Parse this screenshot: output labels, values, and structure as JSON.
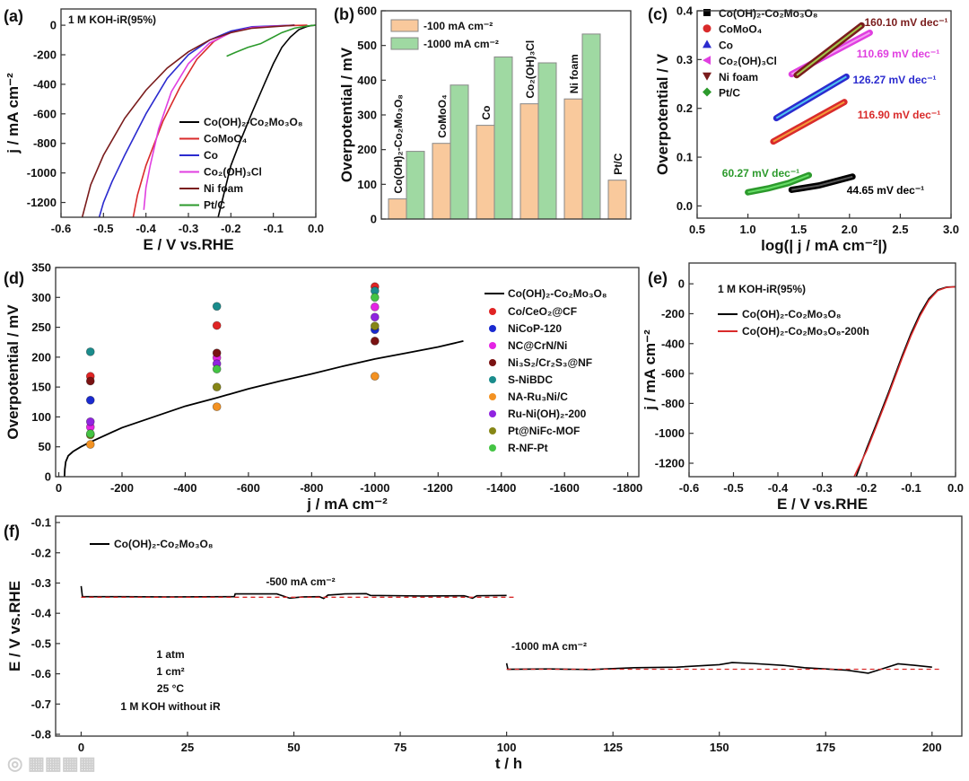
{
  "figure": {
    "watermark": "大数跨境"
  },
  "chart_data": [
    {
      "id": "a",
      "panel_label": "(a)",
      "type": "line",
      "xlabel": "E / V vs.RHE",
      "ylabel": "j / mA cm⁻²",
      "xlim": [
        -0.6,
        0.0
      ],
      "ylim": [
        -1300,
        110
      ],
      "xticks": [
        -0.6,
        -0.5,
        -0.4,
        -0.3,
        -0.2,
        -0.1,
        0.0
      ],
      "xtick_labels": [
        "-0.6",
        "-0.5",
        "-0.4",
        "-0.3",
        "-0.2",
        "-0.1",
        "0.0"
      ],
      "yticks": [
        0,
        -200,
        -400,
        -600,
        -800,
        -1000,
        -1200
      ],
      "ytick_labels": [
        "0",
        "-200",
        "-400",
        "-600",
        "-800",
        "-1000",
        "-1200"
      ],
      "annotations": [
        "1 M KOH-iR(95%)"
      ],
      "legend_position": "bottom-right",
      "series": [
        {
          "name": "Co(OH)₂-Co₂Mo₃O₈",
          "color": "#000000",
          "x": [
            0,
            -0.01,
            -0.02,
            -0.04,
            -0.06,
            -0.08,
            -0.1,
            -0.12,
            -0.15,
            -0.18,
            -0.2,
            -0.23
          ],
          "y": [
            0,
            -2,
            -8,
            -30,
            -80,
            -150,
            -260,
            -390,
            -590,
            -800,
            -950,
            -1300
          ]
        },
        {
          "name": "CoMoO₄",
          "color": "#d92b2b",
          "x": [
            -0.02,
            -0.1,
            -0.15,
            -0.2,
            -0.24,
            -0.28,
            -0.32,
            -0.36,
            -0.4,
            -0.42,
            -0.43
          ],
          "y": [
            0,
            -5,
            -15,
            -45,
            -110,
            -230,
            -420,
            -650,
            -950,
            -1150,
            -1300
          ]
        },
        {
          "name": "Co",
          "color": "#2b2bcf",
          "x": [
            -0.05,
            -0.15,
            -0.2,
            -0.25,
            -0.3,
            -0.35,
            -0.4,
            -0.45,
            -0.48,
            -0.5,
            -0.51
          ],
          "y": [
            0,
            -10,
            -40,
            -100,
            -200,
            -360,
            -600,
            -880,
            -1060,
            -1200,
            -1300
          ]
        },
        {
          "name": "Co₂(OH)₃Cl",
          "color": "#e03fe0",
          "x": [
            -0.05,
            -0.15,
            -0.2,
            -0.25,
            -0.3,
            -0.34,
            -0.37,
            -0.39,
            -0.4,
            -0.405
          ],
          "y": [
            0,
            -15,
            -50,
            -120,
            -260,
            -450,
            -700,
            -950,
            -1100,
            -1250
          ]
        },
        {
          "name": "Ni foam",
          "color": "#7a1c1c",
          "x": [
            -0.05,
            -0.15,
            -0.2,
            -0.25,
            -0.3,
            -0.35,
            -0.4,
            -0.45,
            -0.5,
            -0.53,
            -0.55
          ],
          "y": [
            0,
            -20,
            -50,
            -100,
            -180,
            -290,
            -440,
            -630,
            -880,
            -1080,
            -1300
          ]
        },
        {
          "name": "Pt/C",
          "color": "#2c9a2c",
          "x": [
            0,
            -0.02,
            -0.05,
            -0.08,
            -0.11,
            -0.13,
            -0.16,
            -0.19,
            -0.21
          ],
          "y": [
            0,
            -5,
            -20,
            -50,
            -95,
            -125,
            -150,
            -185,
            -210
          ]
        }
      ]
    },
    {
      "id": "b",
      "panel_label": "(b)",
      "type": "bar",
      "xlabel": "",
      "ylabel": "Overpotential / mV",
      "ylim": [
        0,
        600
      ],
      "yticks": [
        0,
        100,
        200,
        300,
        400,
        500,
        600
      ],
      "ytick_labels": [
        "0",
        "100",
        "200",
        "300",
        "400",
        "500",
        "600"
      ],
      "categories": [
        "Co(OH)₂-Co₂Mo₃O₈",
        "CoMoO₄",
        "Co",
        "Co₂(OH)₃Cl",
        "Ni foam",
        "Pt/C"
      ],
      "legend_position": "top-left",
      "series": [
        {
          "name": "-100 mA cm⁻²",
          "color": "#f9c99c",
          "values": [
            58,
            218,
            270,
            332,
            346,
            112
          ]
        },
        {
          "name": "-1000 mA cm⁻²",
          "color": "#9fd9a2",
          "values": [
            195,
            386,
            467,
            450,
            533,
            null
          ]
        }
      ]
    },
    {
      "id": "c",
      "panel_label": "(c)",
      "type": "line",
      "xlabel": "log(| j / mA cm⁻²|)",
      "ylabel": "Overpotential / V",
      "xlim": [
        0.5,
        3.0
      ],
      "ylim": [
        -0.025,
        0.4
      ],
      "xticks": [
        0.5,
        1.0,
        1.5,
        2.0,
        2.5,
        3.0
      ],
      "xtick_labels": [
        "0.5",
        "1.0",
        "1.5",
        "2.0",
        "2.5",
        "3.0"
      ],
      "yticks": [
        0.0,
        0.1,
        0.2,
        0.3,
        0.4
      ],
      "ytick_labels": [
        "0.0",
        "0.1",
        "0.2",
        "0.3",
        "0.4"
      ],
      "legend_position": "top-left",
      "series": [
        {
          "name": "Co(OH)₂-Co₂Mo₃O₈",
          "color": "#000000",
          "fit_color": "#555555",
          "marker": "square",
          "slope_label": "44.65 mV dec⁻¹",
          "x": [
            1.43,
            1.7,
            2.03
          ],
          "y": [
            0.033,
            0.042,
            0.06
          ]
        },
        {
          "name": "CoMoO₄",
          "color": "#d92b2b",
          "fit_color": "#f39a3a",
          "marker": "circle",
          "slope_label": "116.90 mV dec⁻¹",
          "x": [
            1.25,
            1.95
          ],
          "y": [
            0.132,
            0.213
          ]
        },
        {
          "name": "Co",
          "color": "#2b2bcf",
          "fit_color": "#4fc3ef",
          "marker": "triangle-up",
          "slope_label": "126.27 mV dec⁻¹",
          "x": [
            1.28,
            1.97
          ],
          "y": [
            0.18,
            0.265
          ]
        },
        {
          "name": "Co₂(OH)₃Cl",
          "color": "#e03fe0",
          "fit_color": "#f3a0f3",
          "marker": "triangle-left",
          "slope_label": "110.69 mV dec⁻¹",
          "x": [
            1.43,
            2.2
          ],
          "y": [
            0.27,
            0.355
          ]
        },
        {
          "name": "Ni foam",
          "color": "#7a1c1c",
          "fit_color": "#a1c84a",
          "marker": "triangle-down",
          "slope_label": "160.10 mV dec⁻¹",
          "x": [
            1.48,
            2.12
          ],
          "y": [
            0.268,
            0.37
          ]
        },
        {
          "name": "Pt/C",
          "color": "#2c9a2c",
          "fit_color": "#66dd66",
          "marker": "diamond",
          "slope_label": "60.27 mV dec⁻¹",
          "x": [
            1.0,
            1.2,
            1.4,
            1.6
          ],
          "y": [
            0.028,
            0.036,
            0.047,
            0.063
          ]
        }
      ]
    },
    {
      "id": "d",
      "panel_label": "(d)",
      "type": "scatter",
      "xlabel": "j / mA cm⁻²",
      "ylabel": "Overpotential / mV",
      "xlim": [
        10,
        -1835
      ],
      "ylim": [
        0,
        350
      ],
      "xticks": [
        0,
        -200,
        -400,
        -600,
        -800,
        -1000,
        -1200,
        -1400,
        -1600,
        -1800
      ],
      "xtick_labels": [
        "0",
        "-200",
        "-400",
        "-600",
        "-800",
        "-1000",
        "-1200",
        "-1400",
        "-1600",
        "-1800"
      ],
      "yticks": [
        0,
        50,
        100,
        150,
        200,
        250,
        300,
        350
      ],
      "ytick_labels": [
        "0",
        "50",
        "100",
        "150",
        "200",
        "250",
        "300",
        "350"
      ],
      "legend_position": "right",
      "line_series": {
        "name": "Co(OH)₂-Co₂Mo₃O₈",
        "color": "#000000",
        "x": [
          -18,
          -19,
          -22,
          -30,
          -45,
          -70,
          -100,
          -200,
          -300,
          -400,
          -500,
          -600,
          -700,
          -800,
          -900,
          -1000,
          -1100,
          -1200,
          -1280
        ],
        "y": [
          0,
          12,
          25,
          35,
          42,
          50,
          58,
          82,
          100,
          118,
          132,
          147,
          160,
          172,
          185,
          197,
          207,
          217,
          227
        ]
      },
      "series": [
        {
          "name": "Co/CeO₂@CF",
          "color": "#e02424",
          "x": [
            -100,
            -500,
            -1000
          ],
          "y": [
            168,
            253,
            318
          ]
        },
        {
          "name": "NiCoP-120",
          "color": "#1a2ad0",
          "x": [
            -100,
            -1000
          ],
          "y": [
            128,
            246
          ]
        },
        {
          "name": "NC@CrN/Ni",
          "color": "#e424e4",
          "x": [
            -100,
            -500,
            -1000
          ],
          "y": [
            83,
            199,
            284
          ]
        },
        {
          "name": "Ni₃S₂/Cr₂S₃@NF",
          "color": "#7a1212",
          "x": [
            -100,
            -500,
            -1000
          ],
          "y": [
            160,
            207,
            227
          ]
        },
        {
          "name": "S-NiBDC",
          "color": "#1a8c8c",
          "x": [
            -100,
            -500,
            -1000
          ],
          "y": [
            209,
            285,
            311
          ]
        },
        {
          "name": "NA-Ru₃Ni/C",
          "color": "#f39222",
          "x": [
            -100,
            -500,
            -1000
          ],
          "y": [
            54,
            117,
            168
          ]
        },
        {
          "name": "Ru-Ni(OH)₂-200",
          "color": "#9024e0",
          "x": [
            -100,
            -500,
            -1000
          ],
          "y": [
            92,
            189,
            267
          ]
        },
        {
          "name": "Pt@NiFc-MOF",
          "color": "#868616",
          "x": [
            -100,
            -500,
            -1000
          ],
          "y": [
            70,
            150,
            252
          ]
        },
        {
          "name": "R-NF-Pt",
          "color": "#44c444",
          "x": [
            -100,
            -500,
            -1000
          ],
          "y": [
            72,
            180,
            300
          ]
        }
      ]
    },
    {
      "id": "e",
      "panel_label": "(e)",
      "type": "line",
      "xlabel": "E / V vs.RHE",
      "ylabel": "j / mA cm⁻²",
      "xlim": [
        -0.6,
        0.0
      ],
      "ylim": [
        -1290,
        139
      ],
      "xticks": [
        -0.6,
        -0.5,
        -0.4,
        -0.3,
        -0.2,
        -0.1,
        0.0
      ],
      "xtick_labels": [
        "-0.6",
        "-0.5",
        "-0.4",
        "-0.3",
        "-0.2",
        "-0.1",
        "0.0"
      ],
      "yticks": [
        0,
        -200,
        -400,
        -600,
        -800,
        -1000,
        -1200
      ],
      "ytick_labels": [
        "0",
        "-200",
        "-400",
        "-600",
        "-800",
        "-1000",
        "-1200"
      ],
      "annotations": [
        "1 M KOH-iR(95%)"
      ],
      "legend_position": "top-left",
      "series": [
        {
          "name": "Co(OH)₂-Co₂Mo₃O₈",
          "color": "#000000",
          "x": [
            0,
            -0.02,
            -0.04,
            -0.06,
            -0.08,
            -0.1,
            -0.12,
            -0.15,
            -0.18,
            -0.2,
            -0.225
          ],
          "y": [
            -20,
            -22,
            -40,
            -100,
            -200,
            -330,
            -480,
            -720,
            -950,
            -1100,
            -1300
          ]
        },
        {
          "name": "Co(OH)₂-Co₂Mo₃O₈-200h",
          "color": "#d92b2b",
          "x": [
            0,
            -0.02,
            -0.04,
            -0.06,
            -0.08,
            -0.1,
            -0.12,
            -0.15,
            -0.18,
            -0.2,
            -0.23
          ],
          "y": [
            -20,
            -24,
            -45,
            -110,
            -215,
            -345,
            -495,
            -735,
            -965,
            -1115,
            -1300
          ]
        }
      ]
    },
    {
      "id": "f",
      "panel_label": "(f)",
      "type": "line",
      "xlabel": "t / h",
      "ylabel": "E / V vs.RHE",
      "xlim": [
        -6,
        207
      ],
      "ylim": [
        -0.806,
        -0.079
      ],
      "xticks": [
        0,
        25,
        50,
        75,
        100,
        125,
        150,
        175,
        200
      ],
      "xtick_labels": [
        "0",
        "25",
        "50",
        "75",
        "100",
        "125",
        "150",
        "175",
        "200"
      ],
      "yticks": [
        -0.1,
        -0.2,
        -0.3,
        -0.4,
        -0.5,
        -0.6,
        -0.7,
        -0.8
      ],
      "ytick_labels": [
        "-0.1",
        "-0.2",
        "-0.3",
        "-0.4",
        "-0.5",
        "-0.6",
        "-0.7",
        "-0.8"
      ],
      "legend_position": "top-left",
      "annotations": [
        "-500 mA cm⁻²",
        "-1000 mA cm⁻²",
        "1 atm",
        "1 cm²",
        "25 °C",
        "1 M KOH without iR"
      ],
      "series": [
        {
          "name": "Co(OH)₂-Co₂Mo₃O₈",
          "color": "#000000",
          "segments": [
            {
              "x": [
                0,
                0.3,
                10,
                20,
                36,
                36.2,
                46,
                49,
                52,
                56,
                57,
                58,
                62,
                67,
                68,
                75,
                80,
                90,
                92,
                93,
                100
              ],
              "y": [
                -0.31,
                -0.345,
                -0.345,
                -0.346,
                -0.345,
                -0.336,
                -0.336,
                -0.35,
                -0.346,
                -0.345,
                -0.351,
                -0.34,
                -0.336,
                -0.335,
                -0.341,
                -0.342,
                -0.343,
                -0.342,
                -0.35,
                -0.342,
                -0.341
              ]
            },
            {
              "x": [
                100,
                100.3,
                110,
                120,
                130,
                140,
                150,
                153,
                158,
                165,
                170,
                180,
                185,
                188,
                192,
                196,
                200
              ],
              "y": [
                -0.565,
                -0.585,
                -0.584,
                -0.586,
                -0.58,
                -0.578,
                -0.57,
                -0.563,
                -0.566,
                -0.572,
                -0.58,
                -0.588,
                -0.598,
                -0.585,
                -0.567,
                -0.572,
                -0.578
              ]
            }
          ]
        },
        {
          "name": "reference",
          "color": "#d92b2b",
          "dashed": true,
          "segments": [
            {
              "x": [
                0,
                102
              ],
              "y": [
                -0.347,
                -0.347
              ]
            },
            {
              "x": [
                100,
                202
              ],
              "y": [
                -0.585,
                -0.585
              ]
            }
          ]
        }
      ]
    }
  ]
}
